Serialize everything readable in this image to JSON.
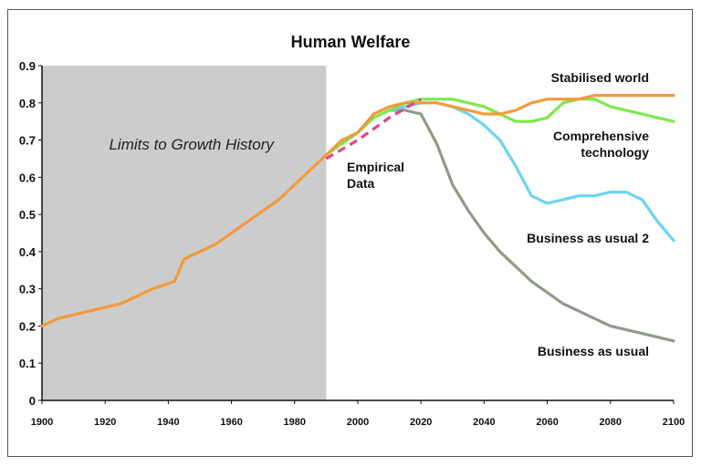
{
  "chart_data": {
    "type": "line",
    "title": "Human Welfare",
    "xlabel": "",
    "ylabel": "",
    "xlim": [
      1900,
      2100
    ],
    "ylim": [
      0,
      0.9
    ],
    "x_ticks": [
      "1900",
      "1920",
      "1940",
      "1960",
      "1980",
      "2000",
      "2020",
      "2040",
      "2060",
      "2080",
      "2100"
    ],
    "y_ticks": [
      "0",
      "0.1",
      "0.2",
      "0.3",
      "0.4",
      "0.5",
      "0.6",
      "0.7",
      "0.8",
      "0.9"
    ],
    "grid": false,
    "shaded_region": {
      "label": "Limits to Growth History",
      "x_range": [
        1900,
        1990
      ],
      "color": "#cccccc"
    },
    "annotation": {
      "label": "Empirical\nData"
    },
    "series": [
      {
        "name": "Stabilised world",
        "color": "#f39a3c",
        "x": [
          1900,
          1905,
          1915,
          1925,
          1935,
          1942,
          1945,
          1955,
          1965,
          1975,
          1980,
          1985,
          1990,
          1995,
          2000,
          2005,
          2010,
          2015,
          2020,
          2025,
          2030,
          2035,
          2040,
          2045,
          2050,
          2055,
          2060,
          2065,
          2070,
          2075,
          2080,
          2090,
          2100
        ],
        "values": [
          0.2,
          0.22,
          0.24,
          0.26,
          0.3,
          0.32,
          0.38,
          0.42,
          0.48,
          0.54,
          0.58,
          0.62,
          0.66,
          0.7,
          0.72,
          0.77,
          0.79,
          0.8,
          0.8,
          0.8,
          0.79,
          0.78,
          0.77,
          0.77,
          0.78,
          0.8,
          0.81,
          0.81,
          0.81,
          0.82,
          0.82,
          0.82,
          0.82
        ]
      },
      {
        "name": "Comprehensive technology",
        "label": "Comprehensive\ntechnology",
        "color": "#7ee84a",
        "x": [
          1990,
          1995,
          2000,
          2005,
          2010,
          2015,
          2020,
          2025,
          2030,
          2035,
          2040,
          2045,
          2050,
          2055,
          2060,
          2065,
          2070,
          2075,
          2080,
          2090,
          2100
        ],
        "values": [
          0.66,
          0.69,
          0.72,
          0.76,
          0.78,
          0.8,
          0.81,
          0.81,
          0.81,
          0.8,
          0.79,
          0.77,
          0.75,
          0.75,
          0.76,
          0.8,
          0.81,
          0.81,
          0.79,
          0.77,
          0.75
        ]
      },
      {
        "name": "Business as usual 2",
        "color": "#6dd4f2",
        "x": [
          2010,
          2015,
          2020,
          2025,
          2030,
          2035,
          2040,
          2045,
          2050,
          2055,
          2060,
          2065,
          2070,
          2075,
          2080,
          2085,
          2090,
          2095,
          2100
        ],
        "values": [
          0.78,
          0.79,
          0.8,
          0.8,
          0.79,
          0.77,
          0.74,
          0.7,
          0.63,
          0.55,
          0.53,
          0.54,
          0.55,
          0.55,
          0.56,
          0.56,
          0.54,
          0.48,
          0.43
        ]
      },
      {
        "name": "Business as usual",
        "color": "#8f9b88",
        "x": [
          2010,
          2015,
          2020,
          2025,
          2030,
          2035,
          2040,
          2045,
          2050,
          2055,
          2060,
          2065,
          2070,
          2075,
          2080,
          2090,
          2100
        ],
        "values": [
          0.78,
          0.78,
          0.77,
          0.69,
          0.58,
          0.51,
          0.45,
          0.4,
          0.36,
          0.32,
          0.29,
          0.26,
          0.24,
          0.22,
          0.2,
          0.18,
          0.16
        ]
      },
      {
        "name": "Empirical Data",
        "color": "#e0458f",
        "dashed": true,
        "x": [
          1990,
          2000,
          2010,
          2020
        ],
        "values": [
          0.65,
          0.7,
          0.76,
          0.81
        ]
      }
    ]
  }
}
